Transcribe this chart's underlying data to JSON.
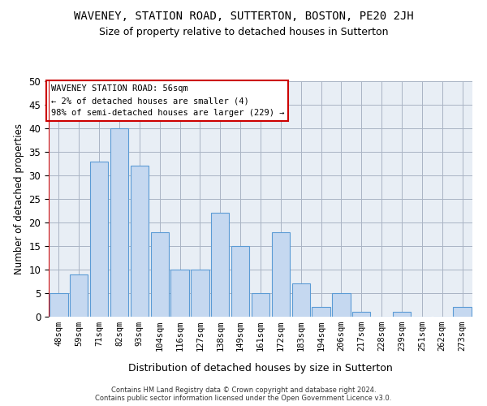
{
  "title": "WAVENEY, STATION ROAD, SUTTERTON, BOSTON, PE20 2JH",
  "subtitle": "Size of property relative to detached houses in Sutterton",
  "xlabel": "Distribution of detached houses by size in Sutterton",
  "ylabel": "Number of detached properties",
  "categories": [
    "48sqm",
    "59sqm",
    "71sqm",
    "82sqm",
    "93sqm",
    "104sqm",
    "116sqm",
    "127sqm",
    "138sqm",
    "149sqm",
    "161sqm",
    "172sqm",
    "183sqm",
    "194sqm",
    "206sqm",
    "217sqm",
    "228sqm",
    "239sqm",
    "251sqm",
    "262sqm",
    "273sqm"
  ],
  "values": [
    5,
    9,
    33,
    40,
    32,
    18,
    10,
    10,
    22,
    15,
    5,
    18,
    7,
    2,
    5,
    1,
    0,
    1,
    0,
    0,
    2
  ],
  "bar_color": "#c5d8f0",
  "bar_edge_color": "#5b9bd5",
  "annotation_text": "WAVENEY STATION ROAD: 56sqm\n← 2% of detached houses are smaller (4)\n98% of semi-detached houses are larger (229) →",
  "annotation_box_color": "#ffffff",
  "annotation_box_edge": "#cc0000",
  "vline_color": "#cc0000",
  "ylim": [
    0,
    50
  ],
  "yticks": [
    0,
    5,
    10,
    15,
    20,
    25,
    30,
    35,
    40,
    45,
    50
  ],
  "bg_color": "#e8eef5",
  "footnote": "Contains HM Land Registry data © Crown copyright and database right 2024.\nContains public sector information licensed under the Open Government Licence v3.0.",
  "title_fontsize": 10,
  "subtitle_fontsize": 9,
  "ylabel_fontsize": 8.5,
  "xlabel_fontsize": 9,
  "tick_fontsize": 7.5,
  "ytick_fontsize": 8.5,
  "annotation_fontsize": 7.5,
  "footnote_fontsize": 6
}
